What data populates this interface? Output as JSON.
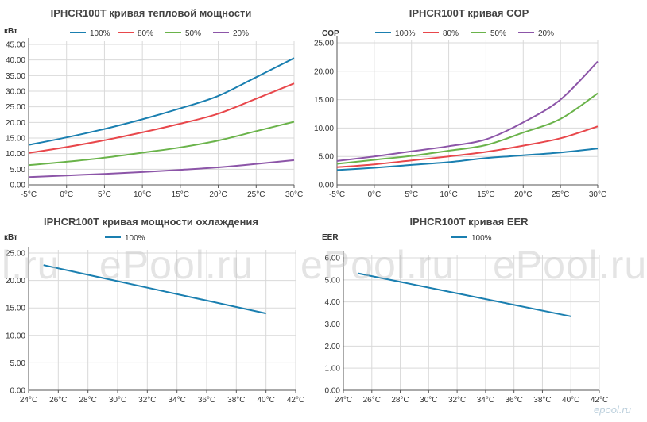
{
  "colors": {
    "s100": "#1a7fb0",
    "s80": "#e8474b",
    "s50": "#6ab34a",
    "s20": "#8c55a8",
    "grid": "#d9d9d9",
    "axis": "#555555"
  },
  "watermark": {
    "text": "ePool.ru",
    "fragment": "l.ru"
  },
  "corner_logo": "epool.ru",
  "chart_data": [
    {
      "id": "heat",
      "type": "line",
      "title": "IPHCR100T кривая тепловой мощности",
      "ylabel": "кВт",
      "xlabel": "",
      "categories": [
        "-5°C",
        "0°C",
        "5°C",
        "10°C",
        "15°C",
        "20°C",
        "25°C",
        "30°C"
      ],
      "ylim": [
        0,
        45
      ],
      "yticks": [
        "0.00",
        "5.00",
        "10.00",
        "15.00",
        "20.00",
        "25.00",
        "30.00",
        "35.00",
        "40.00",
        "45.00"
      ],
      "grid": true,
      "legend": "top",
      "series": [
        {
          "name": "100%",
          "color_key": "s100",
          "x": [
            -5,
            0,
            5,
            10,
            15,
            20,
            25,
            30
          ],
          "values": [
            12.8,
            15.2,
            17.9,
            21.0,
            24.5,
            28.5,
            34.5,
            40.6
          ]
        },
        {
          "name": "80%",
          "color_key": "s80",
          "x": [
            -5,
            0,
            5,
            10,
            15,
            20,
            25,
            30
          ],
          "values": [
            10.2,
            12.1,
            14.3,
            16.8,
            19.6,
            22.8,
            27.6,
            32.5
          ]
        },
        {
          "name": "50%",
          "color_key": "s50",
          "x": [
            -5,
            0,
            5,
            10,
            15,
            20,
            25,
            30
          ],
          "values": [
            6.3,
            7.4,
            8.7,
            10.3,
            12.0,
            14.2,
            17.2,
            20.2
          ]
        },
        {
          "name": "20%",
          "color_key": "s20",
          "x": [
            -5,
            0,
            5,
            10,
            15,
            20,
            25,
            30
          ],
          "values": [
            2.5,
            3.0,
            3.5,
            4.1,
            4.8,
            5.6,
            6.7,
            7.9
          ]
        }
      ]
    },
    {
      "id": "cop",
      "type": "line",
      "title": "IPHCR100T кривая COP",
      "ylabel": "COP",
      "xlabel": "",
      "categories": [
        "-5°C",
        "0°C",
        "5°C",
        "10°C",
        "15°C",
        "20°C",
        "25°C",
        "30°C"
      ],
      "ylim": [
        0,
        25
      ],
      "yticks": [
        "0.00",
        "5.00",
        "10.00",
        "15.00",
        "20.00",
        "25.00"
      ],
      "grid": true,
      "legend": "top",
      "series": [
        {
          "name": "100%",
          "color_key": "s100",
          "x": [
            -5,
            0,
            5,
            10,
            15,
            20,
            25,
            30
          ],
          "values": [
            2.6,
            3.0,
            3.5,
            4.0,
            4.7,
            5.2,
            5.7,
            6.4
          ]
        },
        {
          "name": "80%",
          "color_key": "s80",
          "x": [
            -5,
            0,
            5,
            10,
            15,
            20,
            25,
            30
          ],
          "values": [
            3.1,
            3.6,
            4.3,
            5.0,
            5.8,
            6.9,
            8.2,
            10.3
          ]
        },
        {
          "name": "50%",
          "color_key": "s50",
          "x": [
            -5,
            0,
            5,
            10,
            15,
            20,
            25,
            30
          ],
          "values": [
            3.7,
            4.4,
            5.1,
            6.0,
            7.0,
            9.2,
            11.6,
            16.1
          ]
        },
        {
          "name": "20%",
          "color_key": "s20",
          "x": [
            -5,
            0,
            5,
            10,
            15,
            20,
            25,
            30
          ],
          "values": [
            4.2,
            5.0,
            5.9,
            6.8,
            8.0,
            11.0,
            15.0,
            21.7
          ]
        }
      ]
    },
    {
      "id": "cool",
      "type": "line",
      "title": "IPHCR100T кривая мощности охлаждения",
      "ylabel": "кВт",
      "xlabel": "",
      "categories": [
        "24°C",
        "26°C",
        "28°C",
        "30°C",
        "32°C",
        "34°C",
        "36°C",
        "38°C",
        "40°C",
        "42°C"
      ],
      "ylim": [
        0,
        25
      ],
      "yticks": [
        "0.00",
        "5.00",
        "10.00",
        "15.00",
        "20.00",
        "25.00"
      ],
      "grid": true,
      "legend": "top",
      "series": [
        {
          "name": "100%",
          "color_key": "s100",
          "x": [
            25,
            40
          ],
          "values": [
            22.8,
            14.0
          ]
        }
      ]
    },
    {
      "id": "eer",
      "type": "line",
      "title": "IPHCR100T кривая EER",
      "ylabel": "EER",
      "xlabel": "",
      "categories": [
        "24°C",
        "26°C",
        "28°C",
        "30°C",
        "32°C",
        "34°C",
        "36°C",
        "38°C",
        "40°C",
        "42°C"
      ],
      "ylim": [
        0,
        6
      ],
      "yticks": [
        "0.00",
        "1.00",
        "2.00",
        "3.00",
        "4.00",
        "5.00",
        "6.00"
      ],
      "grid": true,
      "legend": "top",
      "series": [
        {
          "name": "100%",
          "color_key": "s100",
          "x": [
            25,
            40
          ],
          "values": [
            5.3,
            3.35
          ]
        }
      ]
    }
  ]
}
